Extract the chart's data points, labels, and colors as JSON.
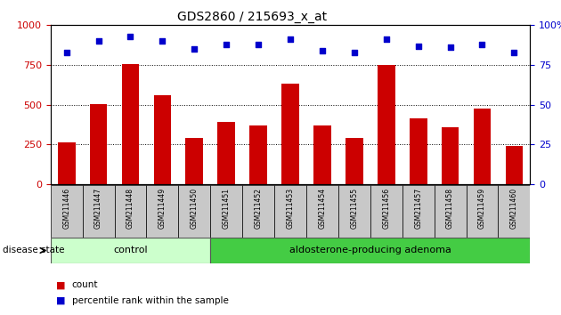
{
  "title": "GDS2860 / 215693_x_at",
  "categories": [
    "GSM211446",
    "GSM211447",
    "GSM211448",
    "GSM211449",
    "GSM211450",
    "GSM211451",
    "GSM211452",
    "GSM211453",
    "GSM211454",
    "GSM211455",
    "GSM211456",
    "GSM211457",
    "GSM211458",
    "GSM211459",
    "GSM211460"
  ],
  "counts": [
    265,
    505,
    755,
    560,
    290,
    390,
    370,
    630,
    370,
    290,
    750,
    415,
    360,
    475,
    240
  ],
  "percentiles": [
    83,
    90,
    93,
    90,
    85,
    88,
    88,
    91,
    84,
    83,
    91,
    87,
    86,
    88,
    83
  ],
  "n_control": 5,
  "n_adenoma": 10,
  "control_label": "control",
  "adenoma_label": "aldosterone-producing adenoma",
  "disease_state_label": "disease state",
  "bar_color": "#cc0000",
  "dot_color": "#0000cc",
  "control_bg": "#ccffcc",
  "adenoma_bg": "#44cc44",
  "ylim_left": [
    0,
    1000
  ],
  "ylim_right": [
    0,
    100
  ],
  "yticks_left": [
    0,
    250,
    500,
    750,
    1000
  ],
  "yticks_right": [
    0,
    25,
    50,
    75,
    100
  ],
  "legend_count": "count",
  "legend_percentile": "percentile rank within the sample"
}
